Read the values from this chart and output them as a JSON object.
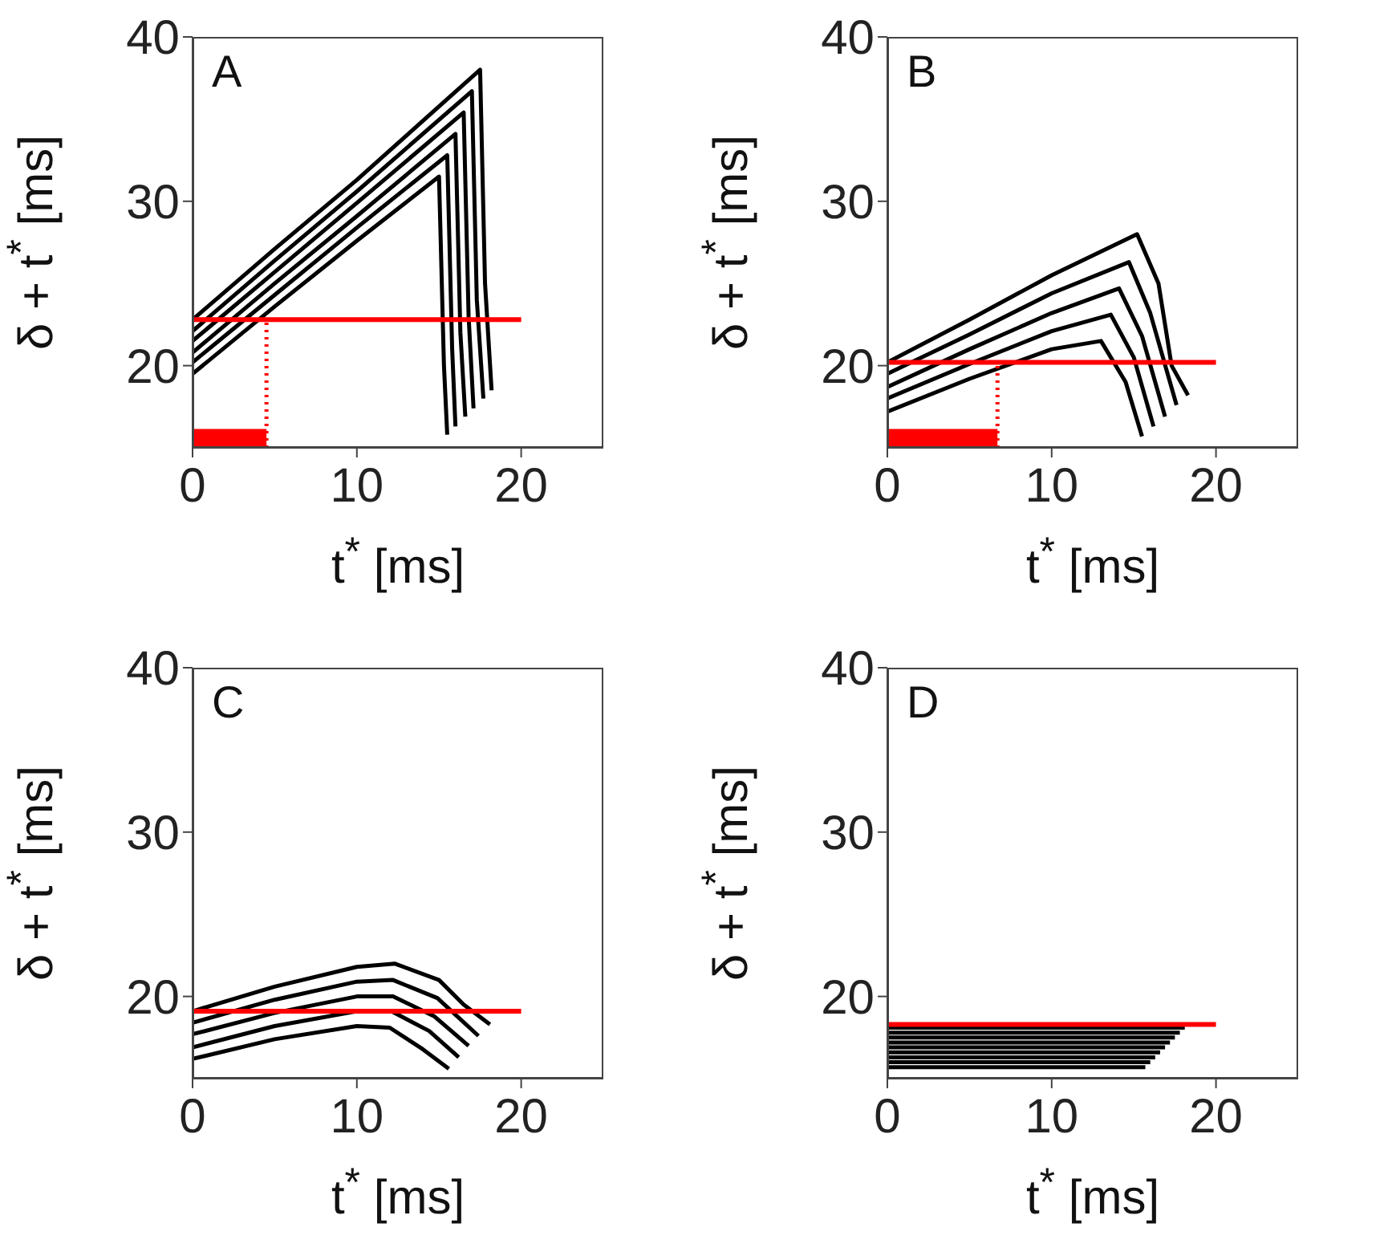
{
  "chart_data": [
    {
      "type": "line",
      "title": "A",
      "xlabel": "t$^{*}$ [ms]",
      "ylabel": "δ + t$^{*}$ [ms]",
      "xlim": [
        0,
        25
      ],
      "ylim": [
        15,
        40
      ],
      "xticks": [
        0,
        10,
        20
      ],
      "yticks": [
        20,
        30,
        40
      ],
      "marker": "none",
      "series": [
        {
          "color": "#000000",
          "x": [
            0,
            5,
            10,
            15,
            15.3,
            15.5
          ],
          "values": [
            19.5,
            23.6,
            27.6,
            31.5,
            20,
            15.8
          ]
        },
        {
          "color": "#000000",
          "x": [
            0,
            5,
            10,
            15.5,
            15.8,
            16.0
          ],
          "values": [
            20.2,
            24.3,
            28.4,
            32.8,
            21,
            16.3
          ]
        },
        {
          "color": "#000000",
          "x": [
            0,
            5,
            10,
            16,
            16.3,
            16.6
          ],
          "values": [
            20.8,
            25,
            29.1,
            34.1,
            22,
            16.9
          ]
        },
        {
          "color": "#000000",
          "x": [
            0,
            5,
            10,
            16.5,
            16.8,
            17.1
          ],
          "values": [
            21.5,
            25.7,
            29.9,
            35.4,
            23,
            17.4
          ]
        },
        {
          "color": "#000000",
          "x": [
            0,
            5,
            10,
            17,
            17.3,
            17.7
          ],
          "values": [
            22.1,
            26.4,
            30.6,
            36.7,
            24,
            18.0
          ]
        },
        {
          "color": "#000000",
          "x": [
            0,
            5,
            10,
            17.5,
            17.8,
            18.2
          ],
          "values": [
            22.8,
            27.1,
            31.3,
            38,
            25,
            18.5
          ]
        },
        {
          "color": "#ff0000",
          "x": [
            0,
            20
          ],
          "values": [
            22.8,
            22.8
          ]
        },
        {
          "color": "#ff0000",
          "x": [
            4.5,
            4.5
          ],
          "values": [
            15,
            22.8
          ],
          "line_style": "dotted"
        },
        {
          "type": "area",
          "color": "#ff0000",
          "x": [
            0,
            4.5
          ],
          "values": [
            16.1,
            16.1
          ]
        }
      ]
    },
    {
      "type": "line",
      "title": "B",
      "xlabel": "t$^{*}$ [ms]",
      "ylabel": "δ + t$^{*}$ [ms]",
      "xlim": [
        0,
        25
      ],
      "ylim": [
        15,
        40
      ],
      "xticks": [
        0,
        10,
        20
      ],
      "yticks": [
        20,
        30,
        40
      ],
      "marker": "none",
      "series": [
        {
          "color": "#000000",
          "x": [
            0,
            5,
            10,
            13,
            14.5,
            15.5
          ],
          "values": [
            17.2,
            19.2,
            21.0,
            21.5,
            19,
            15.7
          ]
        },
        {
          "color": "#000000",
          "x": [
            0,
            5,
            10,
            13.6,
            15.0,
            16.2
          ],
          "values": [
            18.0,
            20.1,
            22.1,
            23.1,
            20.5,
            16.3
          ]
        },
        {
          "color": "#000000",
          "x": [
            0,
            5,
            10,
            14.1,
            15.5,
            16.9
          ],
          "values": [
            18.7,
            21.0,
            23.2,
            24.7,
            21.8,
            16.9
          ]
        },
        {
          "color": "#000000",
          "x": [
            0,
            5,
            10,
            14.7,
            16.0,
            17.6
          ],
          "values": [
            19.5,
            21.9,
            24.4,
            26.3,
            23.2,
            17.6
          ]
        },
        {
          "color": "#000000",
          "x": [
            0,
            5,
            10,
            15.2,
            16.5,
            17.3,
            18.3
          ],
          "values": [
            20.2,
            22.8,
            25.5,
            28.0,
            25,
            20,
            18.2
          ]
        },
        {
          "color": "#ff0000",
          "x": [
            0,
            20
          ],
          "values": [
            20.2,
            20.2
          ]
        },
        {
          "color": "#ff0000",
          "x": [
            6.7,
            6.7
          ],
          "values": [
            15,
            20.2
          ],
          "line_style": "dotted"
        },
        {
          "type": "area",
          "color": "#ff0000",
          "x": [
            0,
            6.7
          ],
          "values": [
            16.1,
            16.1
          ]
        }
      ]
    },
    {
      "type": "line",
      "title": "C",
      "xlabel": "t$^{*}$ [ms]",
      "ylabel": "δ + t$^{*}$ [ms]",
      "xlim": [
        0,
        25
      ],
      "ylim": [
        15,
        40
      ],
      "xticks": [
        0,
        10,
        20
      ],
      "yticks": [
        20,
        30,
        40
      ],
      "marker": "none",
      "series": [
        {
          "color": "#000000",
          "x": [
            0,
            5,
            10,
            12,
            14,
            15.6
          ],
          "values": [
            16.2,
            17.4,
            18.2,
            18.1,
            16.8,
            15.6
          ]
        },
        {
          "color": "#000000",
          "x": [
            0,
            5,
            10,
            12.1,
            14.4,
            16.2
          ],
          "values": [
            16.9,
            18.2,
            19.1,
            19.1,
            17.9,
            16.3
          ]
        },
        {
          "color": "#000000",
          "x": [
            0,
            5,
            10,
            12.2,
            14.7,
            16.8
          ],
          "values": [
            17.7,
            19.0,
            20.0,
            20.0,
            18.8,
            17.0
          ]
        },
        {
          "color": "#000000",
          "x": [
            0,
            5,
            10,
            12.2,
            14.9,
            17.4
          ],
          "values": [
            18.4,
            19.8,
            20.9,
            21.0,
            19.9,
            17.6
          ]
        },
        {
          "color": "#000000",
          "x": [
            0,
            5,
            10,
            12.3,
            15,
            16.5,
            18.1
          ],
          "values": [
            19.1,
            20.6,
            21.8,
            22.0,
            21.0,
            19.5,
            18.3
          ]
        },
        {
          "color": "#ff0000",
          "x": [
            0,
            20
          ],
          "values": [
            19.1,
            19.1
          ]
        }
      ]
    },
    {
      "type": "line",
      "title": "D",
      "xlabel": "t$^{*}$ [ms]",
      "ylabel": "δ + t$^{*}$ [ms]",
      "xlim": [
        0,
        25
      ],
      "ylim": [
        15,
        40
      ],
      "xticks": [
        0,
        10,
        20
      ],
      "yticks": [
        20,
        30,
        40
      ],
      "marker": "none",
      "series": [
        {
          "color": "#000000",
          "x": [
            0,
            15.7
          ],
          "values": [
            15.7,
            15.7
          ]
        },
        {
          "color": "#000000",
          "x": [
            0,
            16.0
          ],
          "values": [
            16.0,
            16.0
          ]
        },
        {
          "color": "#000000",
          "x": [
            0,
            16.3
          ],
          "values": [
            16.3,
            16.3
          ]
        },
        {
          "color": "#000000",
          "x": [
            0,
            16.6
          ],
          "values": [
            16.6,
            16.6
          ]
        },
        {
          "color": "#000000",
          "x": [
            0,
            16.9
          ],
          "values": [
            16.9,
            16.9
          ]
        },
        {
          "color": "#000000",
          "x": [
            0,
            17.2
          ],
          "values": [
            17.2,
            17.2
          ]
        },
        {
          "color": "#000000",
          "x": [
            0,
            17.5
          ],
          "values": [
            17.5,
            17.5
          ]
        },
        {
          "color": "#000000",
          "x": [
            0,
            17.8
          ],
          "values": [
            17.8,
            17.8
          ]
        },
        {
          "color": "#000000",
          "x": [
            0,
            18.1
          ],
          "values": [
            18.1,
            18.1
          ]
        },
        {
          "color": "#ff0000",
          "x": [
            0,
            20
          ],
          "values": [
            18.3,
            18.3
          ]
        }
      ]
    }
  ]
}
